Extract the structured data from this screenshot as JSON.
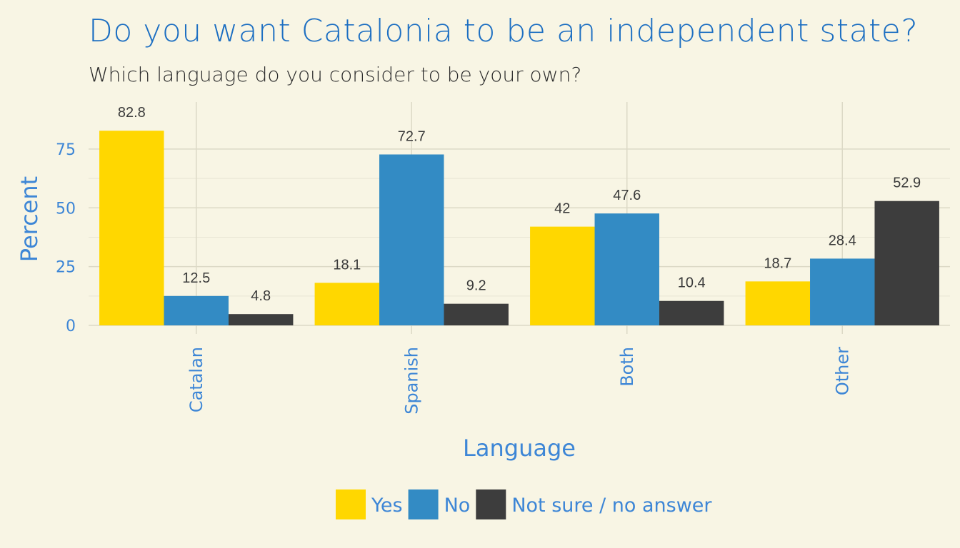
{
  "chart_data": {
    "type": "bar",
    "title": "Do you want Catalonia to be an independent state?",
    "subtitle": "Which language do you consider to be your own?",
    "xlabel": "Language",
    "ylabel": "Percent",
    "categories": [
      "Catalan",
      "Spanish",
      "Both",
      "Other"
    ],
    "series": [
      {
        "name": "Yes",
        "color": "#FFD700",
        "values": [
          82.8,
          18.1,
          42,
          18.7
        ],
        "labels": [
          "82.8",
          "18.1",
          "42",
          "18.7"
        ]
      },
      {
        "name": "No",
        "color": "#338BC4",
        "values": [
          12.5,
          72.7,
          47.6,
          28.4
        ],
        "labels": [
          "12.5",
          "72.7",
          "47.6",
          "28.4"
        ]
      },
      {
        "name": "Not sure / no answer",
        "color": "#3D3D3D",
        "values": [
          4.8,
          9.2,
          10.4,
          52.9
        ],
        "labels": [
          "4.8",
          "9.2",
          "10.4",
          "52.9"
        ]
      }
    ],
    "yticks": [
      0,
      25,
      50,
      75
    ],
    "ylim": [
      0,
      95
    ],
    "grid": true,
    "legend_position": "bottom"
  }
}
